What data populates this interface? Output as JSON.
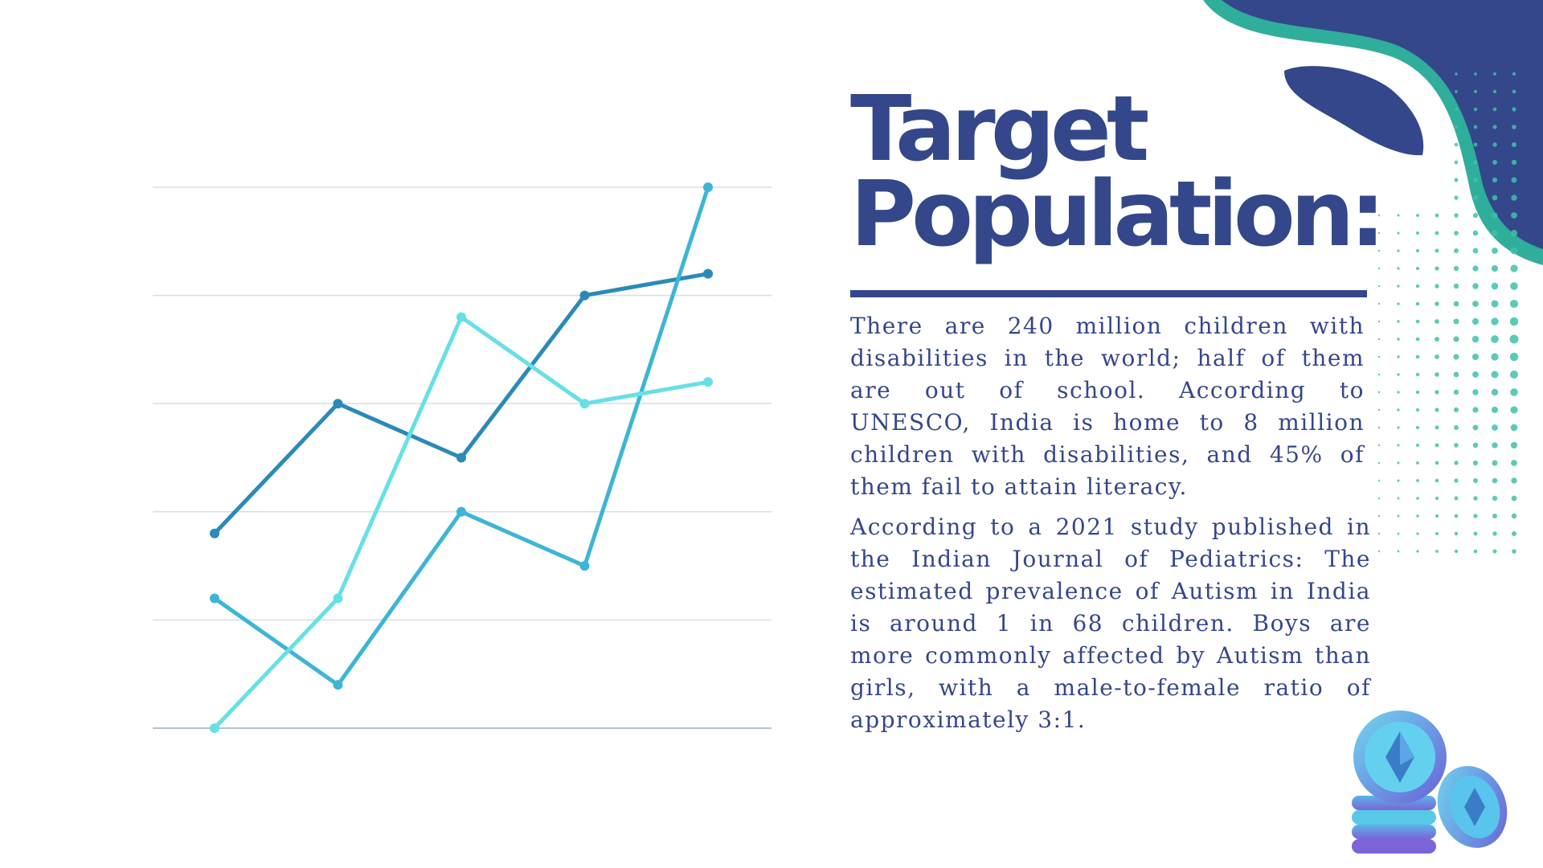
{
  "slide": {
    "title_line1": "Target",
    "title_line2": "Population:",
    "paragraphs": [
      "There are 240 million children with disabilities in the world; half of them are out of school. According to UNESCO, India is home to 8 million children with disabilities, and 45% of them fail to attain literacy.",
      "According to a 2021 study published in the Indian Journal of Pediatrics: The estimated prevalence of Autism in India is around 1 in 68 children. Boys are more commonly affected by Autism than girls, with a male-to-female ratio of approximately 3:1."
    ],
    "colors": {
      "navy": "#34478a",
      "teal": "#2fae9b",
      "dots": "#3ec1a9"
    },
    "illustration_icon": "crypto-coin-stack-icon"
  },
  "chart_data": {
    "type": "line",
    "x": [
      1,
      2,
      3,
      4,
      5
    ],
    "ylim": [
      0,
      5
    ],
    "grid": true,
    "legend": "none",
    "series": [
      {
        "values": [
          1.8,
          3.0,
          2.5,
          4.0,
          4.2
        ],
        "color": "#2a8ab8"
      },
      {
        "values": [
          1.2,
          0.4,
          2.0,
          1.5,
          5.0
        ],
        "color": "#3db5d6"
      },
      {
        "values": [
          0.0,
          1.2,
          3.8,
          3.0,
          3.2
        ],
        "color": "#66e0e6"
      }
    ]
  }
}
